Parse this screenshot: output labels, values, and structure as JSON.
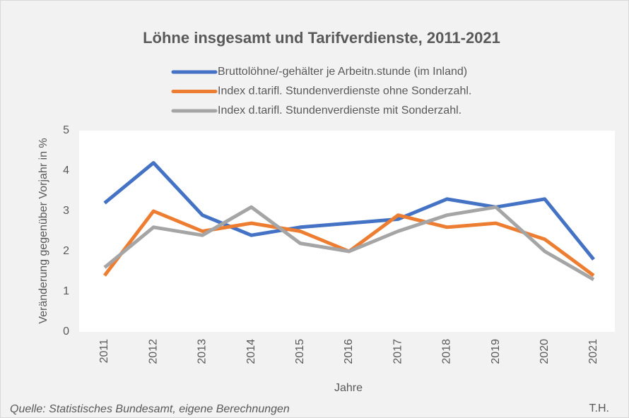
{
  "chart_data": {
    "type": "line",
    "title": "Löhne insgesamt und Tarifverdienste, 2011-2021",
    "x_label": "Jahre",
    "y_label": "Veränderung gegenüber Vorjahr in %",
    "source": "Quelle: Statistisches Bundesamt, eigene Berechnungen",
    "credit": "T.H.",
    "categories": [
      "2011",
      "2012",
      "2013",
      "2014",
      "2015",
      "2016",
      "2017",
      "2018",
      "2019",
      "2020",
      "2021"
    ],
    "series": [
      {
        "name": "Bruttolöhne/-gehälter je Arbeitn.stunde (im Inland)",
        "color": "#4472c4",
        "values": [
          3.2,
          4.2,
          2.9,
          2.4,
          2.6,
          2.7,
          2.8,
          3.3,
          3.1,
          3.3,
          1.8
        ]
      },
      {
        "name": "Index d.tarifl. Stundenverdienste ohne Sonderzahl.",
        "color": "#ed7d31",
        "values": [
          1.4,
          3.0,
          2.5,
          2.7,
          2.5,
          2.0,
          2.9,
          2.6,
          2.7,
          2.3,
          1.4
        ]
      },
      {
        "name": "Index d.tarifl. Stundenverdienste mit Sonderzahl.",
        "color": "#a5a5a5",
        "values": [
          1.6,
          2.6,
          2.4,
          3.1,
          2.2,
          2.0,
          2.5,
          2.9,
          3.1,
          2.0,
          1.3
        ]
      }
    ],
    "ylim": [
      0,
      5
    ],
    "yticks": [
      0,
      1,
      2,
      3,
      4,
      5
    ],
    "grid": false
  }
}
